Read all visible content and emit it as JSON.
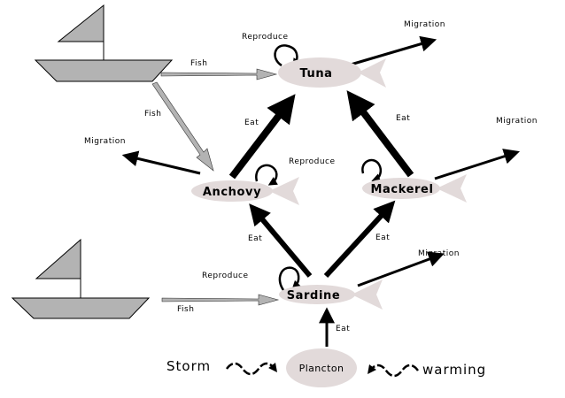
{
  "species": {
    "tuna": "Tuna",
    "anchovy": "Anchovy",
    "mackerel": "Mackerel",
    "sardine": "Sardine",
    "plancton": "Plancton"
  },
  "relations": {
    "eat": "Eat",
    "reproduce": "Reproduce",
    "migration": "Migration",
    "fish": "Fish"
  },
  "factors": {
    "storm": "Storm",
    "warming": "warming"
  },
  "colors": {
    "fish_body": "#e2dada",
    "boat": "#b3b3b3",
    "fishing_arrow": "#b3b3b3",
    "arrow": "#000000"
  }
}
